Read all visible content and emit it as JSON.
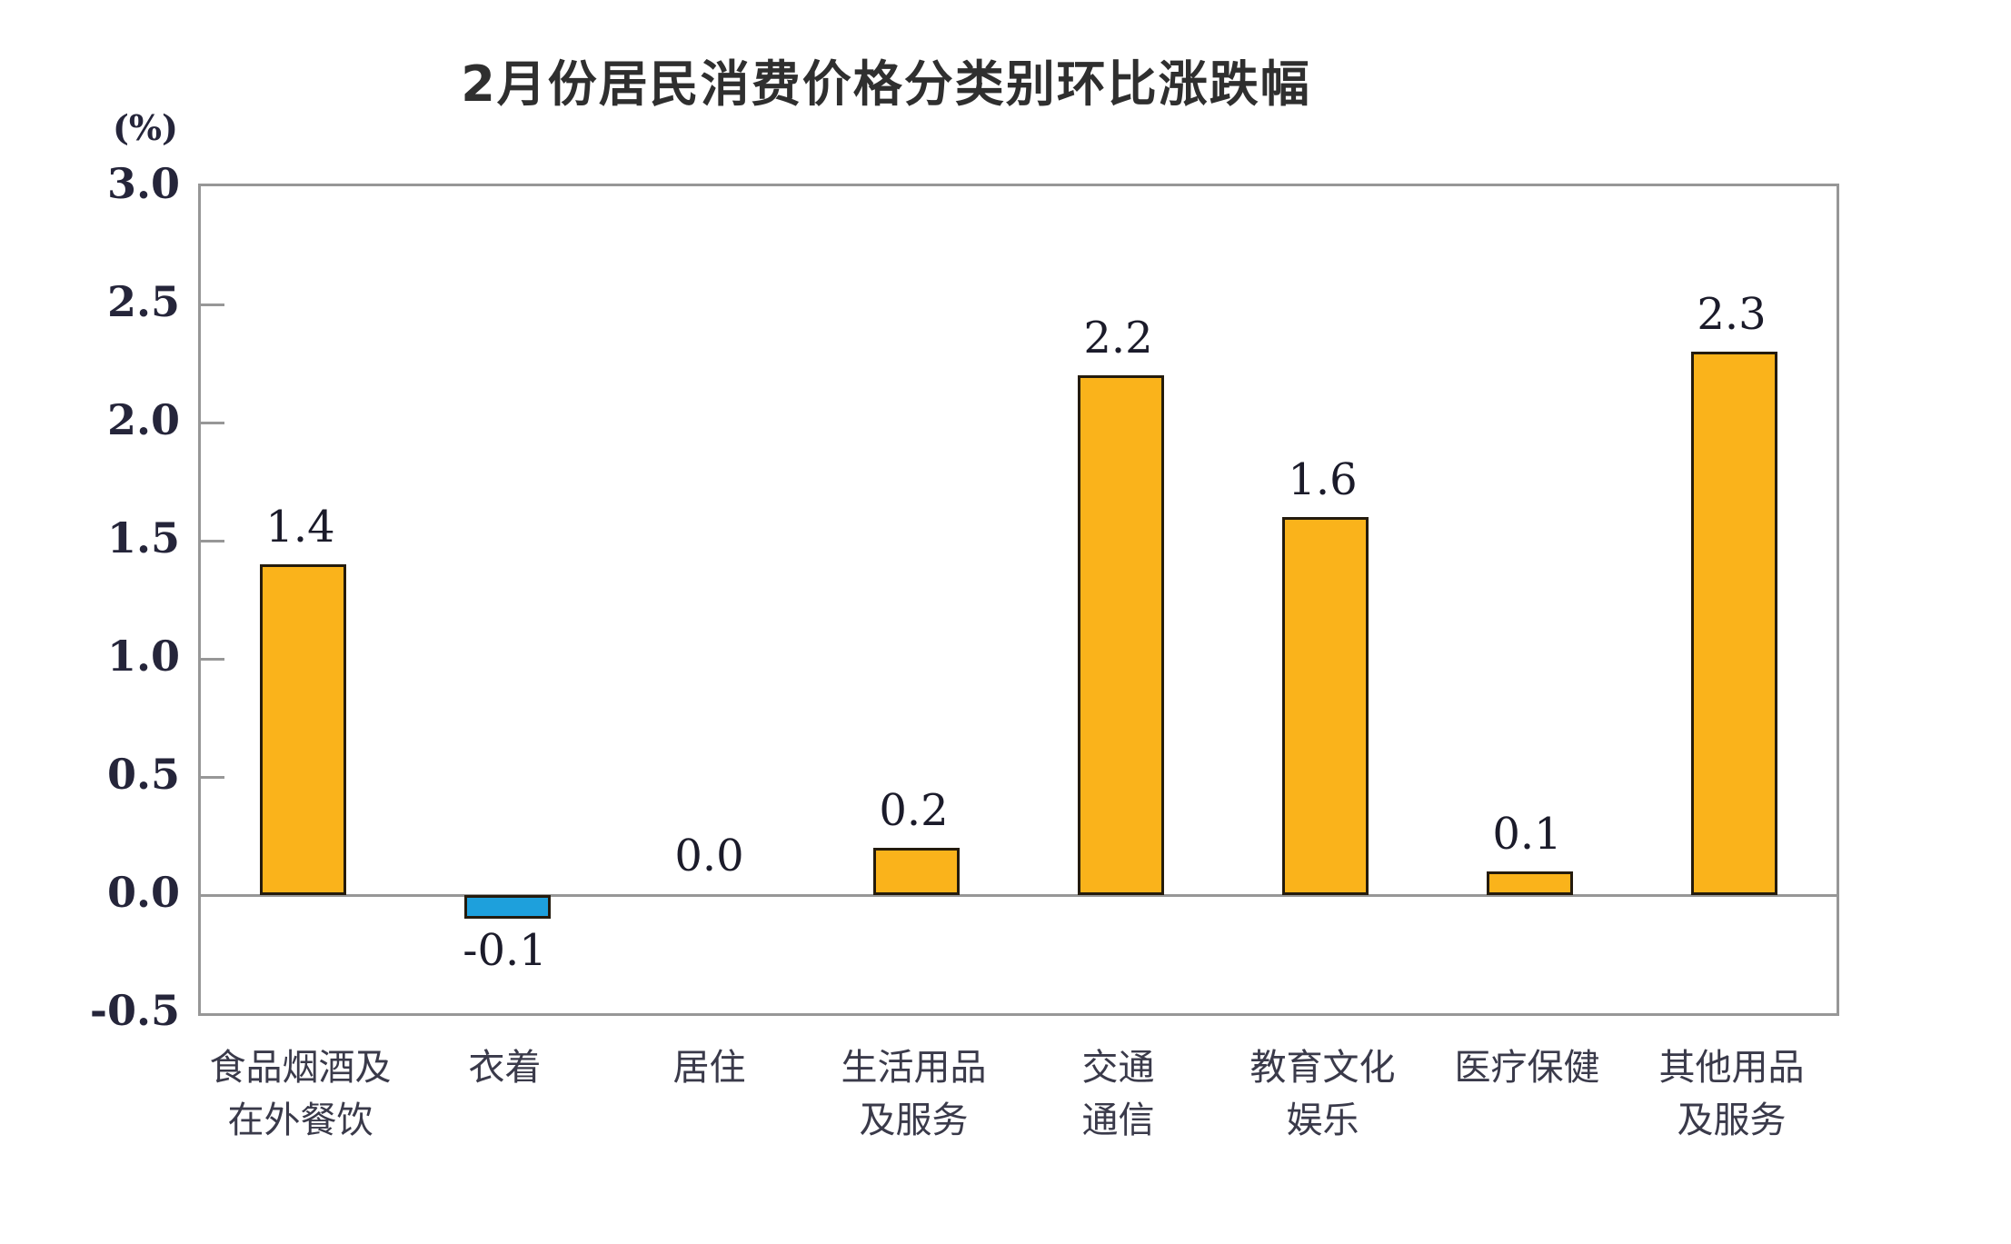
{
  "chart_data": {
    "type": "bar",
    "title": "2月份居民消费价格分类别环比涨跌幅",
    "unit_label": "(%)",
    "categories": [
      "食品烟酒及在外餐饮",
      "衣着",
      "居住",
      "生活用品及服务",
      "交通通信",
      "教育文化娱乐",
      "医疗保健",
      "其他用品及服务"
    ],
    "category_lines": [
      [
        "食品烟酒及",
        "在外餐饮"
      ],
      [
        "衣着"
      ],
      [
        "居住"
      ],
      [
        "生活用品",
        "及服务"
      ],
      [
        "交通",
        "通信"
      ],
      [
        "教育文化",
        "娱乐"
      ],
      [
        "医疗保健"
      ],
      [
        "其他用品",
        "及服务"
      ]
    ],
    "values": [
      1.4,
      -0.1,
      0.0,
      0.2,
      2.2,
      1.6,
      0.1,
      2.3
    ],
    "value_labels": [
      "1.4",
      "-0.1",
      "0.0",
      "0.2",
      "2.2",
      "1.6",
      "0.1",
      "2.3"
    ],
    "xlabel": "",
    "ylabel": "(%)",
    "ylim": [
      -0.5,
      3.0
    ],
    "yticks": [
      "3.0",
      "2.5",
      "2.0",
      "1.5",
      "1.0",
      "0.5",
      "0.0",
      "-0.5"
    ],
    "ytick_values": [
      3.0,
      2.5,
      2.0,
      1.5,
      1.0,
      0.5,
      0.0,
      -0.5
    ],
    "grid": false,
    "legend_position": "none",
    "colors": {
      "bar_positive": "#FAB31B",
      "bar_negative": "#1EA0DC",
      "bar_border": "#241b0d",
      "axis": "#979797",
      "title_text": "#2f2f2f",
      "label_text": "#3a3a4a",
      "value_text": "#1b1b2a"
    }
  }
}
